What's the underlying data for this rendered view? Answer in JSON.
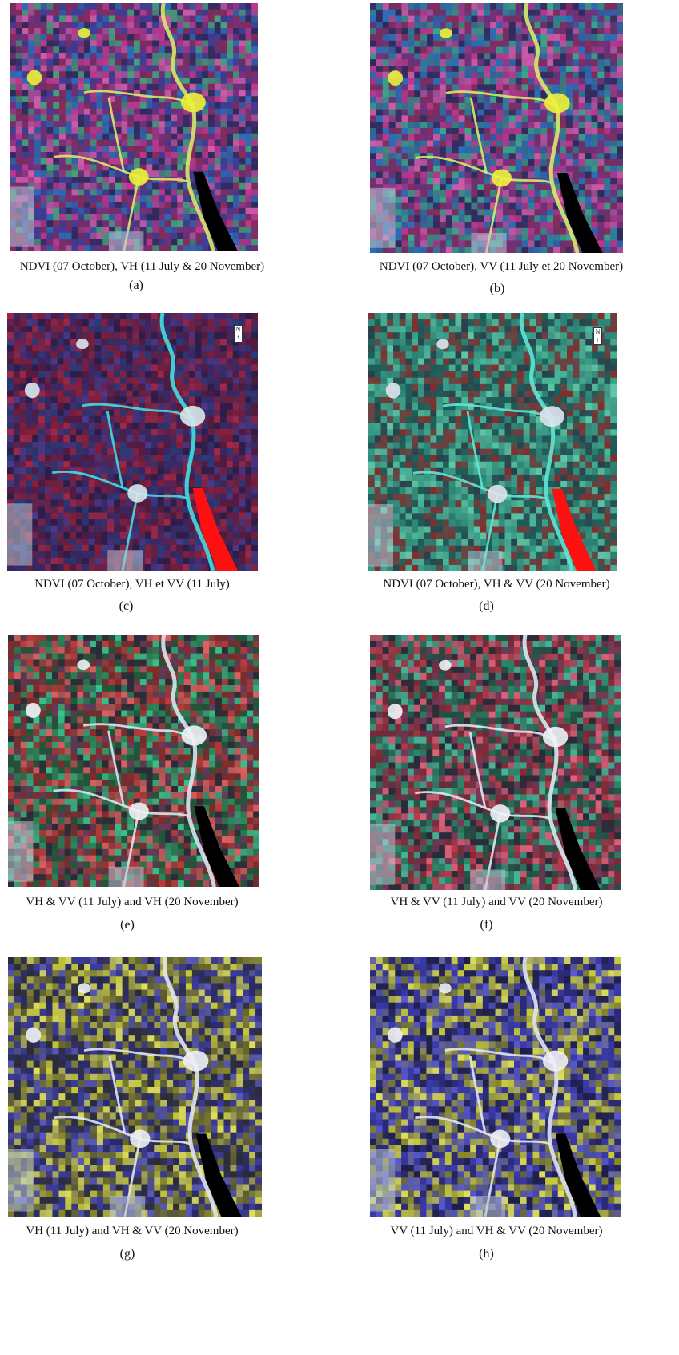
{
  "panels": [
    {
      "caption": "NDVI (07 October), VH (11 July & 20 November)",
      "letter": "(a)",
      "palette": [
        "#7b2f7a",
        "#3d3f9a",
        "#c0388e",
        "#2b6fb8",
        "#44a37a",
        "#8a2b5a",
        "#2d2a5c",
        "#d05ca8"
      ],
      "river": "#d8e86a",
      "water": "#000000",
      "blob": "#ecf23a",
      "base": "#4a3370"
    },
    {
      "caption": "NDVI (07 October), VV (11 July et 20 November)",
      "letter": "(b)",
      "palette": [
        "#7b2f7a",
        "#2e7f9b",
        "#c0388e",
        "#2b6fb8",
        "#3aa88a",
        "#8a2b5a",
        "#2d2a5c",
        "#d05ca8"
      ],
      "river": "#d6ea6e",
      "water": "#000000",
      "blob": "#eef23c",
      "base": "#443a72"
    },
    {
      "caption": "NDVI (07 October), VH et VV (11 July)",
      "letter": "(c)",
      "palette": [
        "#5a1a3e",
        "#3a2a6a",
        "#8a1f3a",
        "#2c3a7a",
        "#6a2550",
        "#2a1e4a",
        "#a02848",
        "#4a3a8a"
      ],
      "river": "#3fe0e0",
      "water": "#ff1010",
      "blob": "#d8e8ec",
      "base": "#3a1e48"
    },
    {
      "caption": "NDVI (07 October), VH & VV (20 November)",
      "letter": "(d)",
      "palette": [
        "#2f8a7a",
        "#4ab89a",
        "#1e5a56",
        "#7a3a3a",
        "#5fc6a6",
        "#2a3f4a",
        "#8a2a2a",
        "#3aa08a"
      ],
      "river": "#5ee6d6",
      "water": "#ff1010",
      "blob": "#e0e6ee",
      "base": "#2a6a62"
    },
    {
      "caption": "VH & VV (11 July) and VH (20 November)",
      "letter": "(e)",
      "palette": [
        "#c03a3a",
        "#2a8a5a",
        "#1f5a3a",
        "#8a2a2a",
        "#3ac08a",
        "#6a3a5a",
        "#2a2a3a",
        "#e06060"
      ],
      "river": "#d8e6ee",
      "water": "#000000",
      "blob": "#eef2f6",
      "base": "#3a3a3a"
    },
    {
      "caption": "VH & VV (11 July) and VV (20 November)",
      "letter": "(f)",
      "palette": [
        "#b83a4a",
        "#2a8a6a",
        "#1f5a4a",
        "#8a2a3a",
        "#46b89a",
        "#7a3a5a",
        "#2a2a3a",
        "#e0607a"
      ],
      "river": "#dce8f0",
      "water": "#000000",
      "blob": "#f0f2f6",
      "base": "#3a3038"
    },
    {
      "caption": "VH (11 July) and VH & VV (20 November)",
      "letter": "(g)",
      "palette": [
        "#c8cc3a",
        "#3a3aa0",
        "#8a8a2a",
        "#2a2a6a",
        "#e0e05a",
        "#5a5ab8",
        "#6a6a2a",
        "#2a2a3a"
      ],
      "river": "#e0e4f0",
      "water": "#000000",
      "blob": "#f0f0f6",
      "base": "#3a3a5a"
    },
    {
      "caption": "VV (11 July) and VH & VV (20 November)",
      "letter": "(h)",
      "palette": [
        "#3a3ab0",
        "#c8cc3a",
        "#2a2a7a",
        "#8a8a2a",
        "#5a5ad0",
        "#e0e05a",
        "#1e1e4a",
        "#6a6aa0"
      ],
      "river": "#e0e4f0",
      "water": "#000000",
      "blob": "#f0f0f6",
      "base": "#30306a"
    }
  ]
}
